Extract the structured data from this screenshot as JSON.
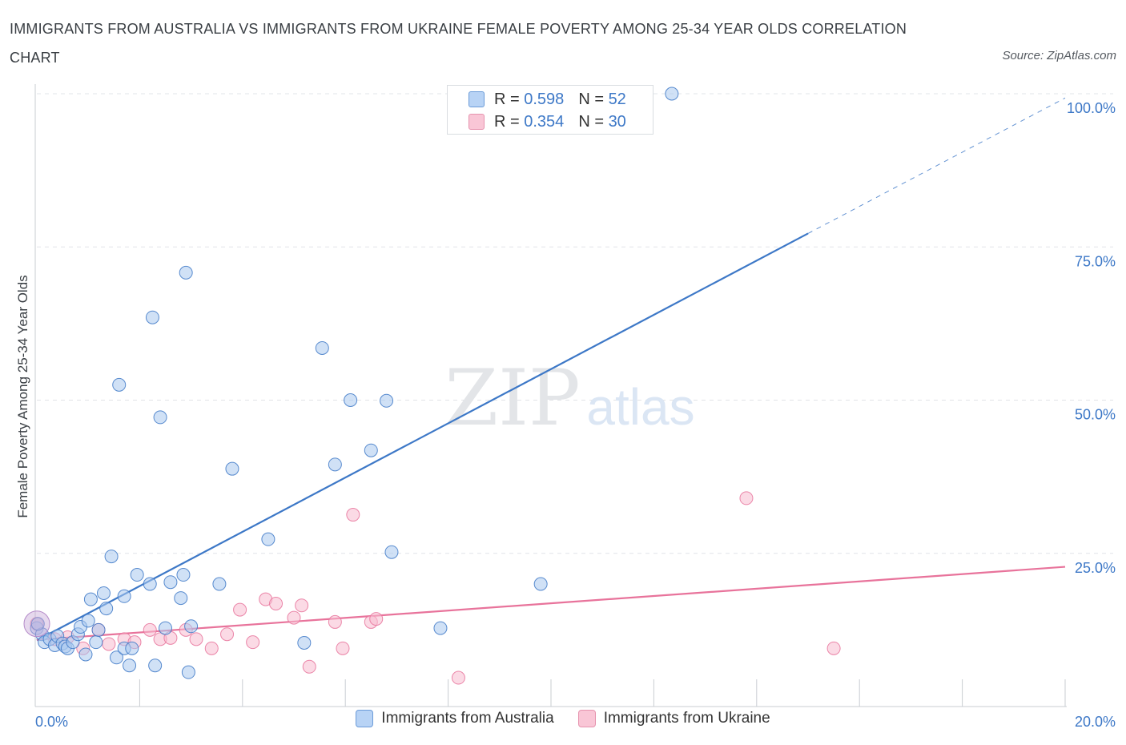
{
  "title": "IMMIGRANTS FROM AUSTRALIA VS IMMIGRANTS FROM UKRAINE FEMALE POVERTY AMONG 25-34 YEAR OLDS CORRELATION CHART",
  "source": "Source: ZipAtlas.com",
  "watermark": {
    "zip": "ZIP",
    "atlas": "atlas"
  },
  "legend_top": [
    {
      "r_label": "R = ",
      "r_value": "0.598",
      "n_label": "N = ",
      "n_value": "52"
    },
    {
      "r_label": "R = ",
      "r_value": "0.354",
      "n_label": "N = ",
      "n_value": "30"
    }
  ],
  "chart_data": {
    "type": "scatter",
    "title": "IMMIGRANTS FROM AUSTRALIA VS IMMIGRANTS FROM UKRAINE FEMALE POVERTY AMONG 25-34 YEAR OLDS CORRELATION CHART",
    "xlabel": "",
    "ylabel": "Female Poverty Among 25-34 Year Olds",
    "xlim": [
      0,
      20
    ],
    "ylim": [
      0,
      100
    ],
    "x_tick_labels": [
      "0.0%",
      "20.0%"
    ],
    "y_ticks": [
      25,
      50,
      75,
      100
    ],
    "y_tick_labels": [
      "25.0%",
      "50.0%",
      "75.0%",
      "100.0%"
    ],
    "grid": true,
    "legend_position": "bottom-center",
    "series": [
      {
        "name": "Immigrants from Australia",
        "color": "#3d78c7",
        "fill": "#a9c8ef",
        "R": 0.598,
        "N": 52,
        "trend": {
          "x0": 0.0,
          "y0": 10.8,
          "x1": 15.0,
          "y1": 77.2,
          "dashed_to_x": 20.0,
          "dashed_to_y": 99.3
        },
        "points": [
          [
            0.0,
            12.8
          ],
          [
            0.1,
            11.8
          ],
          [
            0.15,
            10.5
          ],
          [
            0.25,
            11.0
          ],
          [
            0.35,
            10.0
          ],
          [
            0.4,
            11.5
          ],
          [
            0.5,
            10.3
          ],
          [
            0.55,
            9.8
          ],
          [
            0.6,
            9.5
          ],
          [
            0.7,
            10.5
          ],
          [
            0.8,
            11.8
          ],
          [
            0.85,
            13.0
          ],
          [
            0.95,
            8.5
          ],
          [
            1.0,
            14.0
          ],
          [
            1.05,
            17.5
          ],
          [
            1.15,
            10.5
          ],
          [
            1.2,
            12.5
          ],
          [
            1.3,
            18.5
          ],
          [
            1.35,
            16.0
          ],
          [
            1.45,
            24.5
          ],
          [
            1.55,
            8.0
          ],
          [
            1.6,
            52.5
          ],
          [
            1.7,
            9.5
          ],
          [
            1.7,
            18.0
          ],
          [
            1.8,
            6.7
          ],
          [
            1.85,
            9.5
          ],
          [
            1.95,
            21.5
          ],
          [
            2.2,
            20.0
          ],
          [
            2.25,
            63.5
          ],
          [
            2.3,
            6.7
          ],
          [
            2.4,
            47.2
          ],
          [
            2.5,
            12.8
          ],
          [
            2.6,
            20.3
          ],
          [
            2.8,
            17.7
          ],
          [
            2.85,
            21.5
          ],
          [
            2.9,
            70.8
          ],
          [
            2.95,
            5.6
          ],
          [
            3.0,
            13.1
          ],
          [
            3.55,
            20.0
          ],
          [
            3.8,
            38.8
          ],
          [
            4.5,
            27.3
          ],
          [
            5.2,
            10.4
          ],
          [
            5.55,
            58.5
          ],
          [
            5.8,
            39.5
          ],
          [
            6.1,
            50.0
          ],
          [
            6.5,
            41.8
          ],
          [
            6.8,
            49.9
          ],
          [
            6.9,
            25.2
          ],
          [
            7.85,
            12.8
          ],
          [
            9.8,
            20.0
          ],
          [
            12.35,
            100.0
          ],
          [
            0.02,
            13.5
          ]
        ]
      },
      {
        "name": "Immigrants from Ukraine",
        "color": "#e8739b",
        "fill": "#f7bcd0",
        "R": 0.354,
        "N": 30,
        "trend": {
          "x0": 0.0,
          "y0": 10.9,
          "x1": 20.0,
          "y1": 22.8
        },
        "points": [
          [
            0.0,
            13.5
          ],
          [
            0.35,
            11.0
          ],
          [
            0.9,
            9.5
          ],
          [
            1.2,
            12.5
          ],
          [
            1.4,
            10.2
          ],
          [
            1.7,
            11.0
          ],
          [
            1.9,
            10.5
          ],
          [
            2.2,
            12.5
          ],
          [
            2.4,
            11.0
          ],
          [
            2.6,
            11.2
          ],
          [
            2.9,
            12.5
          ],
          [
            3.1,
            11.0
          ],
          [
            3.4,
            9.5
          ],
          [
            3.7,
            11.8
          ],
          [
            3.95,
            15.8
          ],
          [
            4.2,
            10.5
          ],
          [
            4.45,
            17.5
          ],
          [
            4.65,
            16.8
          ],
          [
            5.0,
            14.5
          ],
          [
            5.15,
            16.5
          ],
          [
            5.3,
            6.5
          ],
          [
            5.8,
            13.8
          ],
          [
            5.95,
            9.5
          ],
          [
            6.15,
            31.3
          ],
          [
            6.5,
            13.8
          ],
          [
            6.6,
            14.3
          ],
          [
            8.2,
            4.7
          ],
          [
            13.8,
            34.0
          ],
          [
            15.5,
            9.5
          ],
          [
            0.6,
            11.3
          ]
        ]
      }
    ]
  }
}
